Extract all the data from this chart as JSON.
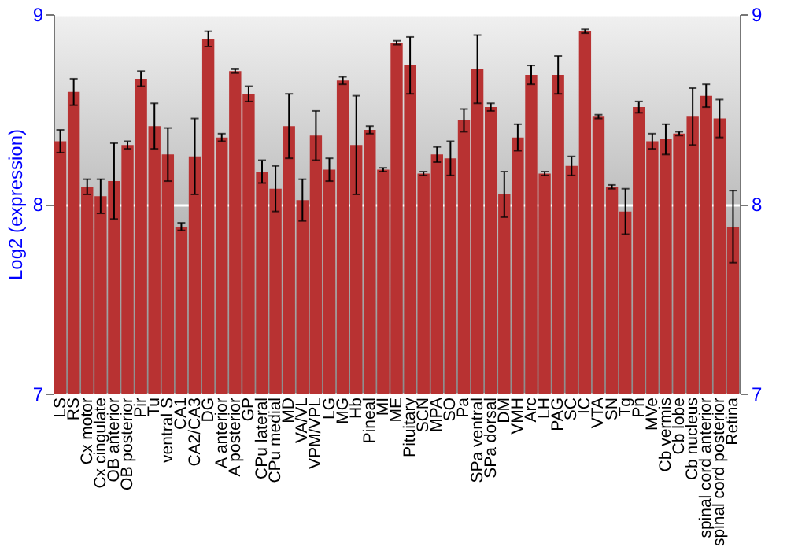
{
  "chart_data": {
    "type": "bar",
    "ylabel": "Log2 (expression)",
    "categories": [
      "LS",
      "RS",
      "Cx motor",
      "Cx cingulate",
      "OB anterior",
      "OB posterior",
      "Pir",
      "Tu",
      "ventral S",
      "CA1",
      "CA2/CA3",
      "DG",
      "A anterior",
      "A posterior",
      "GP",
      "CPu lateral",
      "CPu medial",
      "MD",
      "VA/VL",
      "VPM/VPL",
      "LG",
      "MG",
      "Hb",
      "Pineal",
      "MI",
      "ME",
      "Pituitary",
      "SCN",
      "MPA",
      "SO",
      "Pa",
      "SPa ventral",
      "SPa dorsal",
      "DM",
      "VMH",
      "Arc",
      "LH",
      "PAG",
      "SC",
      "IC",
      "VTA",
      "SN",
      "Tg",
      "Pn",
      "MVe",
      "Cb vermis",
      "Cb lobe",
      "Cb nucleus",
      "spinal cord anterior",
      "spinal cord posterior",
      "Retina"
    ],
    "series": [
      {
        "color": "#b83232",
        "values": [
          8.33,
          8.59,
          8.09,
          8.04,
          8.12,
          8.31,
          8.66,
          8.41,
          8.26,
          7.88,
          8.25,
          8.87,
          8.35,
          8.7,
          8.58,
          8.17,
          8.08,
          8.41,
          8.02,
          8.36,
          8.18,
          8.65,
          8.31,
          8.39,
          8.18,
          8.85,
          8.73,
          8.16,
          8.26,
          8.24,
          8.44,
          8.71,
          8.51,
          8.05,
          8.35,
          8.68,
          8.16,
          8.68,
          8.2,
          8.91,
          8.46,
          8.09,
          7.96,
          8.51,
          8.33,
          8.34,
          8.37,
          8.46,
          8.57,
          8.45,
          7.88
        ],
        "errors": [
          0.06,
          0.07,
          0.04,
          0.09,
          0.2,
          0.02,
          0.04,
          0.12,
          0.14,
          0.02,
          0.2,
          0.04,
          0.02,
          0.01,
          0.04,
          0.06,
          0.12,
          0.17,
          0.11,
          0.13,
          0.06,
          0.02,
          0.26,
          0.02,
          0.01,
          0.01,
          0.15,
          0.01,
          0.04,
          0.09,
          0.06,
          0.18,
          0.02,
          0.12,
          0.07,
          0.05,
          0.01,
          0.1,
          0.05,
          0.01,
          0.01,
          0.01,
          0.12,
          0.03,
          0.04,
          0.08,
          0.01,
          0.15,
          0.06,
          0.1,
          0.19
        ]
      }
    ],
    "ylim": [
      7,
      9
    ],
    "yticks": [
      7,
      8,
      9
    ],
    "y2lim": [
      7,
      9
    ],
    "y2ticks": [
      7,
      8,
      9
    ],
    "grid": "y"
  }
}
